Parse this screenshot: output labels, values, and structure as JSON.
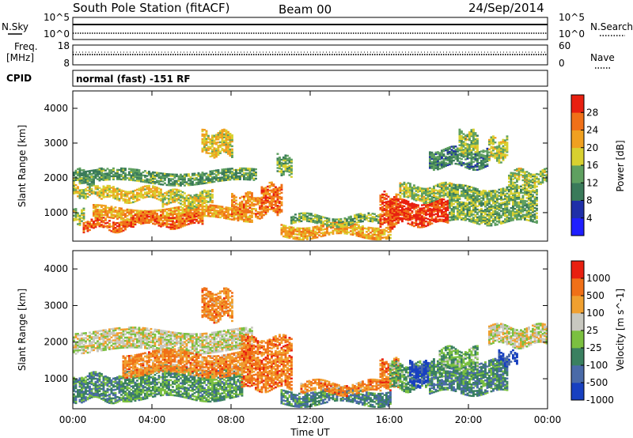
{
  "header": {
    "station": "South Pole Station (fitACF)",
    "beam": "Beam 00",
    "date": "24/Sep/2014"
  },
  "status_panel": {
    "nsky_label": "N.Sky",
    "nsearch_label": "N.Search",
    "freq_label_1": "Freq.",
    "freq_label_2": "[MHz]",
    "nave_label": "Nave",
    "cpid_label": "CPID",
    "cpid_text": "normal (fast) -151 RF",
    "noise_ticks": [
      "10^5",
      "10^0"
    ],
    "freq_ticks": [
      "18",
      "8"
    ],
    "nave_ticks": [
      "60",
      "0"
    ]
  },
  "chart_data": [
    {
      "type": "heatmap",
      "name": "power",
      "title": "",
      "xlabel": "Time UT",
      "ylabel": "Slant Range [km]",
      "xlim": [
        0,
        24
      ],
      "ylim": [
        180,
        4500
      ],
      "xticks": [
        "00:00",
        "04:00",
        "08:00",
        "12:00",
        "16:00",
        "20:00",
        "00:00"
      ],
      "yticks": [
        1000,
        2000,
        3000,
        4000
      ],
      "colorbar": {
        "label": "Power [dB]",
        "ticks": [
          "4",
          "8",
          "12",
          "16",
          "20",
          "24",
          "28"
        ],
        "colors": [
          "#1f1fff",
          "#1f2fa8",
          "#3a7a5a",
          "#5fa060",
          "#d8d030",
          "#f0a020",
          "#f07018",
          "#e82010"
        ]
      },
      "bands": [
        {
          "t0": 0.0,
          "t1": 0.6,
          "lo": 700,
          "hi": 1050,
          "level": 0.5
        },
        {
          "t0": 0.0,
          "t1": 1.5,
          "lo": 1450,
          "hi": 1750,
          "level": 0.55
        },
        {
          "t0": 0.0,
          "t1": 1.5,
          "lo": 1850,
          "hi": 2200,
          "level": 0.4
        },
        {
          "t0": 0.5,
          "t1": 3.0,
          "lo": 500,
          "hi": 800,
          "level": 0.85
        },
        {
          "t0": 0.3,
          "t1": 9.2,
          "lo": 1850,
          "hi": 2200,
          "level": 0.4
        },
        {
          "t0": 1.0,
          "t1": 9.0,
          "lo": 800,
          "hi": 1150,
          "level": 0.7
        },
        {
          "t0": 1.5,
          "t1": 4.5,
          "lo": 1350,
          "hi": 1700,
          "level": 0.6
        },
        {
          "t0": 3.0,
          "t1": 6.5,
          "lo": 600,
          "hi": 950,
          "level": 0.8
        },
        {
          "t0": 4.5,
          "t1": 7.0,
          "lo": 1200,
          "hi": 1600,
          "level": 0.55
        },
        {
          "t0": 6.5,
          "t1": 8.0,
          "lo": 2650,
          "hi": 3300,
          "level": 0.6
        },
        {
          "t0": 8.0,
          "t1": 9.5,
          "lo": 900,
          "hi": 1500,
          "level": 0.75
        },
        {
          "t0": 9.5,
          "t1": 10.5,
          "lo": 1000,
          "hi": 1800,
          "level": 0.8
        },
        {
          "t0": 10.3,
          "t1": 11.0,
          "lo": 2100,
          "hi": 2600,
          "level": 0.45
        },
        {
          "t0": 10.5,
          "t1": 16.0,
          "lo": 300,
          "hi": 650,
          "level": 0.7
        },
        {
          "t0": 11.0,
          "t1": 15.5,
          "lo": 650,
          "hi": 900,
          "level": 0.45
        },
        {
          "t0": 15.5,
          "t1": 16.5,
          "lo": 600,
          "hi": 1500,
          "level": 0.85
        },
        {
          "t0": 16.0,
          "t1": 19.0,
          "lo": 650,
          "hi": 1300,
          "level": 0.92
        },
        {
          "t0": 16.5,
          "t1": 19.5,
          "lo": 1350,
          "hi": 1800,
          "level": 0.5
        },
        {
          "t0": 18.0,
          "t1": 21.0,
          "lo": 2300,
          "hi": 2800,
          "level": 0.35
        },
        {
          "t0": 19.0,
          "t1": 23.5,
          "lo": 700,
          "hi": 1700,
          "level": 0.45
        },
        {
          "t0": 19.5,
          "t1": 20.5,
          "lo": 2700,
          "hi": 3300,
          "level": 0.5
        },
        {
          "t0": 21.0,
          "t1": 22.0,
          "lo": 2500,
          "hi": 3100,
          "level": 0.55
        },
        {
          "t0": 22.0,
          "t1": 24.0,
          "lo": 1800,
          "hi": 2200,
          "level": 0.5
        }
      ]
    },
    {
      "type": "heatmap",
      "name": "velocity",
      "title": "",
      "xlabel": "Time UT",
      "ylabel": "Slant Range [km]",
      "xlim": [
        0,
        24
      ],
      "ylim": [
        180,
        4500
      ],
      "xticks": [
        "00:00",
        "04:00",
        "08:00",
        "12:00",
        "16:00",
        "20:00",
        "00:00"
      ],
      "yticks": [
        1000,
        2000,
        3000,
        4000
      ],
      "colorbar": {
        "label": "Velocity [m s^-1]",
        "ticks": [
          "1000",
          "500",
          "100",
          "25",
          "-25",
          "-100",
          "-500",
          "-1000"
        ],
        "colors": [
          "#1840c0",
          "#4a6aa8",
          "#3a8060",
          "#7bc040",
          "#c8c8c0",
          "#f0a030",
          "#f07018",
          "#e82010"
        ]
      },
      "bands": [
        {
          "t0": 0.0,
          "t1": 2.5,
          "lo": 400,
          "hi": 1100,
          "level": 0.3
        },
        {
          "t0": 0.0,
          "t1": 9.0,
          "lo": 1750,
          "hi": 2300,
          "level": 0.55
        },
        {
          "t0": 2.5,
          "t1": 8.5,
          "lo": 450,
          "hi": 1300,
          "level": 0.35
        },
        {
          "t0": 2.5,
          "t1": 9.0,
          "lo": 1100,
          "hi": 1700,
          "level": 0.75
        },
        {
          "t0": 6.5,
          "t1": 8.0,
          "lo": 2600,
          "hi": 3400,
          "level": 0.75
        },
        {
          "t0": 8.5,
          "t1": 11.0,
          "lo": 700,
          "hi": 2100,
          "level": 0.78
        },
        {
          "t0": 10.5,
          "t1": 16.0,
          "lo": 300,
          "hi": 700,
          "level": 0.28
        },
        {
          "t0": 11.5,
          "t1": 15.5,
          "lo": 600,
          "hi": 900,
          "level": 0.75
        },
        {
          "t0": 15.5,
          "t1": 16.5,
          "lo": 700,
          "hi": 1500,
          "level": 0.78
        },
        {
          "t0": 16.0,
          "t1": 18.0,
          "lo": 700,
          "hi": 1400,
          "level": 0.4
        },
        {
          "t0": 17.0,
          "t1": 18.2,
          "lo": 800,
          "hi": 1400,
          "level": 0.05
        },
        {
          "t0": 18.0,
          "t1": 22.0,
          "lo": 600,
          "hi": 1500,
          "level": 0.3
        },
        {
          "t0": 18.5,
          "t1": 20.5,
          "lo": 1200,
          "hi": 1800,
          "level": 0.4
        },
        {
          "t0": 21.0,
          "t1": 24.0,
          "lo": 1900,
          "hi": 2400,
          "level": 0.55
        },
        {
          "t0": 21.5,
          "t1": 22.5,
          "lo": 1400,
          "hi": 1700,
          "level": 0.1
        }
      ]
    }
  ]
}
